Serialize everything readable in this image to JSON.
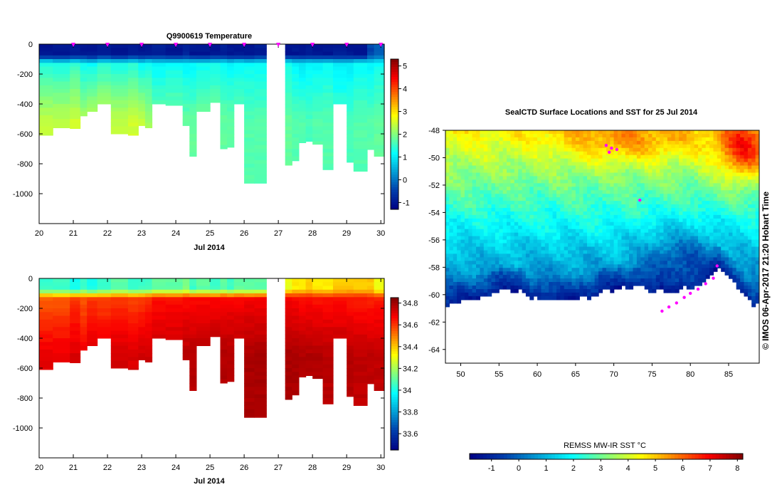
{
  "chart_data": [
    {
      "type": "heatmap",
      "title": "Q9900619  Temperature",
      "xlabel": "Jul 2014",
      "x_ticks": [
        "20",
        "21",
        "22",
        "23",
        "24",
        "25",
        "26",
        "27",
        "28",
        "29",
        "30"
      ],
      "y_ticks": [
        "0",
        "-200",
        "-400",
        "-600",
        "-800",
        "-1000"
      ],
      "xlim": [
        20,
        30.1
      ],
      "ylim": [
        -1200,
        0
      ],
      "colorbar": {
        "min": -1.3,
        "max": 5.3,
        "ticks": [
          "-1",
          "0",
          "1",
          "2",
          "3",
          "4",
          "5"
        ]
      },
      "profile_marks_x": [
        21.0,
        22.0,
        23.0,
        24.0,
        25.0,
        26.0,
        27.0,
        28.0,
        29.0,
        30.0
      ],
      "profiles": [
        {
          "x": 20.0,
          "surf": -1.0,
          "mid": 1.4,
          "deep": 2.4,
          "maxd": 610
        },
        {
          "x": 20.4,
          "surf": -1.0,
          "mid": 1.3,
          "deep": 2.4,
          "maxd": 560
        },
        {
          "x": 20.9,
          "surf": -0.9,
          "mid": 1.5,
          "deep": 2.5,
          "maxd": 565
        },
        {
          "x": 21.2,
          "surf": -1.0,
          "mid": 1.2,
          "deep": 2.3,
          "maxd": 480
        },
        {
          "x": 21.4,
          "surf": -1.0,
          "mid": 1.2,
          "deep": 2.4,
          "maxd": 450
        },
        {
          "x": 21.7,
          "surf": -0.9,
          "mid": 1.4,
          "deep": 2.5,
          "maxd": 400
        },
        {
          "x": 22.1,
          "surf": -1.0,
          "mid": 1.3,
          "deep": 2.4,
          "maxd": 600
        },
        {
          "x": 22.6,
          "surf": -0.9,
          "mid": 1.4,
          "deep": 2.5,
          "maxd": 610
        },
        {
          "x": 22.9,
          "surf": -1.0,
          "mid": 1.2,
          "deep": 2.4,
          "maxd": 545
        },
        {
          "x": 23.1,
          "surf": -1.0,
          "mid": 1.3,
          "deep": 2.2,
          "maxd": 560
        },
        {
          "x": 23.3,
          "surf": -0.9,
          "mid": 1.1,
          "deep": 1.9,
          "maxd": 400
        },
        {
          "x": 23.7,
          "surf": -1.0,
          "mid": 1.2,
          "deep": 1.9,
          "maxd": 410
        },
        {
          "x": 24.2,
          "surf": -0.8,
          "mid": 1.1,
          "deep": 1.8,
          "maxd": 545
        },
        {
          "x": 24.4,
          "surf": -1.0,
          "mid": 1.1,
          "deep": 1.8,
          "maxd": 750
        },
        {
          "x": 24.6,
          "surf": -1.0,
          "mid": 1.2,
          "deep": 1.9,
          "maxd": 450
        },
        {
          "x": 25.0,
          "surf": -1.0,
          "mid": 1.3,
          "deep": 1.9,
          "maxd": 390
        },
        {
          "x": 25.3,
          "surf": -0.9,
          "mid": 1.2,
          "deep": 1.8,
          "maxd": 700
        },
        {
          "x": 25.5,
          "surf": -1.0,
          "mid": 1.1,
          "deep": 1.8,
          "maxd": 690
        },
        {
          "x": 25.7,
          "surf": -1.0,
          "mid": 1.2,
          "deep": 1.8,
          "maxd": 400
        },
        {
          "x": 26.0,
          "surf": -1.0,
          "mid": 1.2,
          "deep": 1.7,
          "maxd": 930
        },
        {
          "x": 26.3,
          "surf": -0.9,
          "mid": 1.2,
          "deep": 1.7,
          "maxd": 930
        },
        {
          "x": 27.2,
          "surf": -1.0,
          "mid": 1.3,
          "deep": 1.8,
          "maxd": 810
        },
        {
          "x": 27.4,
          "surf": -1.0,
          "mid": 1.1,
          "deep": 1.7,
          "maxd": 780
        },
        {
          "x": 27.6,
          "surf": -1.0,
          "mid": 1.0,
          "deep": 1.7,
          "maxd": 660
        },
        {
          "x": 27.8,
          "surf": -0.9,
          "mid": 1.1,
          "deep": 1.6,
          "maxd": 650
        },
        {
          "x": 28.0,
          "surf": -1.0,
          "mid": 1.1,
          "deep": 1.7,
          "maxd": 670
        },
        {
          "x": 28.3,
          "surf": -1.0,
          "mid": 1.2,
          "deep": 1.7,
          "maxd": 840
        },
        {
          "x": 28.6,
          "surf": -0.9,
          "mid": 1.0,
          "deep": 1.6,
          "maxd": 400
        },
        {
          "x": 29.0,
          "surf": -1.0,
          "mid": 1.0,
          "deep": 1.6,
          "maxd": 790
        },
        {
          "x": 29.2,
          "surf": -1.0,
          "mid": 1.2,
          "deep": 1.7,
          "maxd": 850
        },
        {
          "x": 29.6,
          "surf": -0.4,
          "mid": 1.1,
          "deep": 1.7,
          "maxd": 705
        },
        {
          "x": 29.8,
          "surf": -0.2,
          "mid": 1.2,
          "deep": 1.8,
          "maxd": 750
        }
      ]
    },
    {
      "type": "heatmap",
      "title": "",
      "xlabel": "Jul 2014",
      "x_ticks": [
        "20",
        "21",
        "22",
        "23",
        "24",
        "25",
        "26",
        "27",
        "28",
        "29",
        "30"
      ],
      "y_ticks": [
        "0",
        "-200",
        "-400",
        "-600",
        "-800",
        "-1000"
      ],
      "xlim": [
        20,
        30.1
      ],
      "ylim": [
        -1200,
        0
      ],
      "colorbar": {
        "min": 33.45,
        "max": 34.85,
        "ticks": [
          "33.6",
          "33.8",
          "34",
          "34.2",
          "34.4",
          "34.6",
          "34.8"
        ]
      },
      "profiles": [
        {
          "x": 20.0,
          "surf": 34.05,
          "mid": 34.55,
          "deep": 34.7,
          "maxd": 610
        },
        {
          "x": 20.4,
          "surf": 34.05,
          "mid": 34.55,
          "deep": 34.7,
          "maxd": 560
        },
        {
          "x": 20.9,
          "surf": 34.0,
          "mid": 34.6,
          "deep": 34.72,
          "maxd": 565
        },
        {
          "x": 21.2,
          "surf": 34.05,
          "mid": 34.55,
          "deep": 34.7,
          "maxd": 480
        },
        {
          "x": 21.4,
          "surf": 34.0,
          "mid": 34.6,
          "deep": 34.72,
          "maxd": 450
        },
        {
          "x": 21.7,
          "surf": 34.05,
          "mid": 34.58,
          "deep": 34.72,
          "maxd": 400
        },
        {
          "x": 22.1,
          "surf": 34.1,
          "mid": 34.6,
          "deep": 34.73,
          "maxd": 600
        },
        {
          "x": 22.6,
          "surf": 34.05,
          "mid": 34.58,
          "deep": 34.72,
          "maxd": 610
        },
        {
          "x": 22.9,
          "surf": 34.05,
          "mid": 34.6,
          "deep": 34.73,
          "maxd": 545
        },
        {
          "x": 23.1,
          "surf": 34.05,
          "mid": 34.62,
          "deep": 34.74,
          "maxd": 560
        },
        {
          "x": 23.3,
          "surf": 34.1,
          "mid": 34.65,
          "deep": 34.76,
          "maxd": 400
        },
        {
          "x": 23.7,
          "surf": 34.1,
          "mid": 34.65,
          "deep": 34.76,
          "maxd": 410
        },
        {
          "x": 24.2,
          "surf": 34.15,
          "mid": 34.66,
          "deep": 34.77,
          "maxd": 545
        },
        {
          "x": 24.4,
          "surf": 34.05,
          "mid": 34.66,
          "deep": 34.77,
          "maxd": 750
        },
        {
          "x": 24.6,
          "surf": 34.1,
          "mid": 34.66,
          "deep": 34.77,
          "maxd": 450
        },
        {
          "x": 25.0,
          "surf": 34.05,
          "mid": 34.67,
          "deep": 34.78,
          "maxd": 390
        },
        {
          "x": 25.3,
          "surf": 34.1,
          "mid": 34.67,
          "deep": 34.78,
          "maxd": 700
        },
        {
          "x": 25.5,
          "surf": 34.05,
          "mid": 34.67,
          "deep": 34.78,
          "maxd": 690
        },
        {
          "x": 25.7,
          "surf": 34.1,
          "mid": 34.67,
          "deep": 34.78,
          "maxd": 400
        },
        {
          "x": 26.0,
          "surf": 34.1,
          "mid": 34.68,
          "deep": 34.79,
          "maxd": 930
        },
        {
          "x": 26.3,
          "surf": 34.1,
          "mid": 34.68,
          "deep": 34.79,
          "maxd": 930
        },
        {
          "x": 27.2,
          "surf": 34.3,
          "mid": 34.68,
          "deep": 34.79,
          "maxd": 810
        },
        {
          "x": 27.4,
          "surf": 34.35,
          "mid": 34.67,
          "deep": 34.79,
          "maxd": 780
        },
        {
          "x": 27.6,
          "surf": 34.35,
          "mid": 34.66,
          "deep": 34.78,
          "maxd": 660
        },
        {
          "x": 27.8,
          "surf": 34.4,
          "mid": 34.66,
          "deep": 34.78,
          "maxd": 650
        },
        {
          "x": 28.0,
          "surf": 34.35,
          "mid": 34.65,
          "deep": 34.78,
          "maxd": 670
        },
        {
          "x": 28.3,
          "surf": 34.35,
          "mid": 34.65,
          "deep": 34.77,
          "maxd": 840
        },
        {
          "x": 28.6,
          "surf": 34.4,
          "mid": 34.65,
          "deep": 34.77,
          "maxd": 400
        },
        {
          "x": 29.0,
          "surf": 34.4,
          "mid": 34.64,
          "deep": 34.77,
          "maxd": 790
        },
        {
          "x": 29.2,
          "surf": 34.4,
          "mid": 34.64,
          "deep": 34.76,
          "maxd": 850
        },
        {
          "x": 29.6,
          "surf": 34.4,
          "mid": 34.63,
          "deep": 34.76,
          "maxd": 705
        },
        {
          "x": 29.8,
          "surf": 34.3,
          "mid": 34.63,
          "deep": 34.76,
          "maxd": 750
        }
      ]
    },
    {
      "type": "heatmap",
      "title": "SealCTD Surface Locations and SST for 25 Jul 2014",
      "x_ticks": [
        "50",
        "55",
        "60",
        "65",
        "70",
        "75",
        "80",
        "85"
      ],
      "y_ticks": [
        "-48",
        "-50",
        "-52",
        "-54",
        "-56",
        "-58",
        "-60",
        "-62",
        "-64"
      ],
      "xlim": [
        48,
        89
      ],
      "ylim": [
        -65,
        -48
      ],
      "colorbar": {
        "label": "REMSS MW-IR SST °C",
        "min": -1.8,
        "max": 8.2,
        "ticks": [
          "-1",
          "0",
          "1",
          "2",
          "3",
          "4",
          "5",
          "6",
          "7",
          "8"
        ]
      },
      "ice_edge": [
        [
          48,
          -60.8
        ],
        [
          50,
          -60.5
        ],
        [
          52,
          -60.3
        ],
        [
          54,
          -60.0
        ],
        [
          55.5,
          -59.6
        ],
        [
          57,
          -59.8
        ],
        [
          58,
          -59.6
        ],
        [
          59,
          -60.3
        ],
        [
          60,
          -60.2
        ],
        [
          61,
          -60.4
        ],
        [
          62,
          -60.5
        ],
        [
          63.5,
          -60.4
        ],
        [
          65,
          -60.3
        ],
        [
          66,
          -60.1
        ],
        [
          67,
          -60.3
        ],
        [
          68,
          -59.9
        ],
        [
          69,
          -59.6
        ],
        [
          70,
          -59.8
        ],
        [
          71,
          -59.4
        ],
        [
          72,
          -59.6
        ],
        [
          73,
          -59.3
        ],
        [
          74,
          -59.5
        ],
        [
          75,
          -59.8
        ],
        [
          76,
          -59.6
        ],
        [
          77,
          -59.9
        ],
        [
          78,
          -59.9
        ],
        [
          79,
          -59.4
        ],
        [
          80,
          -59.6
        ],
        [
          81,
          -59.4
        ],
        [
          82,
          -59.0
        ],
        [
          83,
          -58.3
        ],
        [
          83.8,
          -58.0
        ],
        [
          84.5,
          -58.5
        ],
        [
          85.5,
          -59.0
        ],
        [
          86.5,
          -59.8
        ],
        [
          87.5,
          -60.3
        ],
        [
          88.2,
          -60.8
        ],
        [
          89,
          -60.6
        ]
      ],
      "track_points": [
        [
          69.0,
          -49.1
        ],
        [
          69.7,
          -49.3
        ],
        [
          69.4,
          -49.6
        ],
        [
          70.4,
          -49.4
        ],
        [
          73.4,
          -53.1
        ],
        [
          83.5,
          -57.9
        ],
        [
          83.0,
          -58.8
        ],
        [
          82.0,
          -59.2
        ],
        [
          81.0,
          -59.6
        ],
        [
          80.0,
          -59.9
        ],
        [
          79.2,
          -60.2
        ],
        [
          78.2,
          -60.6
        ],
        [
          77.2,
          -60.9
        ],
        [
          76.3,
          -61.2
        ]
      ],
      "side_label": "© IMOS 06-Apr-2017 21:20 Hobart Time"
    }
  ]
}
